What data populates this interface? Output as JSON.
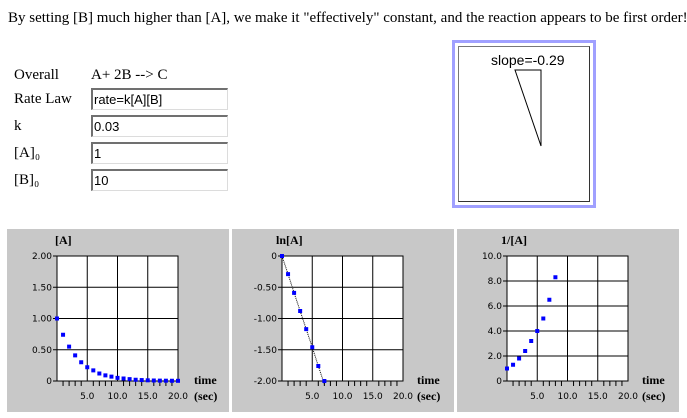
{
  "header": {
    "text": "By setting [B] much higher than [A], we make it \"effectively\" constant, and the reaction appears to be first order!"
  },
  "form": {
    "overall_label": "Overall",
    "overall_value": "A+ 2B --> C",
    "rate_law_label": "Rate Law",
    "rate_law_value": "rate=k[A][B]",
    "k_label": "k",
    "k_value": "0.03",
    "a0_label": "[A]₀",
    "a0_value": "1",
    "b0_label": "[B]₀",
    "b0_value": "10"
  },
  "slope_panel": {
    "label": "slope=-0.29"
  },
  "graphs": {
    "time_label": "time",
    "sec_label": "(sec)"
  },
  "chart_data": [
    {
      "type": "scatter",
      "title": "[A]",
      "xlabel": "time (sec)",
      "ylabel": "[A]",
      "xlim": [
        0,
        20
      ],
      "ylim": [
        0,
        2
      ],
      "x_ticks": [
        "5.0",
        "10.0",
        "15.0",
        "20.0"
      ],
      "y_ticks": [
        "2.00",
        "1.50",
        "1.00",
        "0.50",
        "0"
      ],
      "x": [
        0,
        1,
        2,
        3,
        4,
        5,
        6,
        7,
        8,
        9,
        10,
        11,
        12,
        13,
        14,
        15,
        16,
        17,
        18,
        19,
        20
      ],
      "y": [
        1.0,
        0.74,
        0.55,
        0.41,
        0.3,
        0.22,
        0.17,
        0.12,
        0.09,
        0.07,
        0.05,
        0.04,
        0.03,
        0.02,
        0.015,
        0.011,
        0.008,
        0.006,
        0.005,
        0.004,
        0.003
      ],
      "connect_line": false
    },
    {
      "type": "scatter",
      "title": "ln[A]",
      "xlabel": "time (sec)",
      "ylabel": "ln[A]",
      "xlim": [
        0,
        20
      ],
      "ylim": [
        -2,
        0
      ],
      "x_ticks": [
        "5.0",
        "10.0",
        "15.0",
        "20.0"
      ],
      "y_ticks": [
        "0",
        "-0.50",
        "-1.00",
        "-1.50",
        "-2.00"
      ],
      "x": [
        0,
        1,
        2,
        3,
        4,
        5,
        6,
        7
      ],
      "y": [
        0,
        -0.29,
        -0.59,
        -0.88,
        -1.17,
        -1.46,
        -1.76,
        -2.05
      ],
      "connect_line": true
    },
    {
      "type": "scatter",
      "title": "1/[A]",
      "xlabel": "time (sec)",
      "ylabel": "1/[A]",
      "xlim": [
        0,
        20
      ],
      "ylim": [
        0,
        10
      ],
      "x_ticks": [
        "5.0",
        "10.0",
        "15.0",
        "20.0"
      ],
      "y_ticks": [
        "10.0",
        "8.0",
        "6.0",
        "4.0",
        "2.0",
        "0"
      ],
      "x": [
        0,
        1,
        2,
        3,
        4,
        5,
        6,
        7,
        8
      ],
      "y": [
        1.0,
        1.3,
        1.8,
        2.4,
        3.2,
        4.0,
        5.0,
        6.5,
        8.3
      ],
      "connect_line": false
    }
  ]
}
